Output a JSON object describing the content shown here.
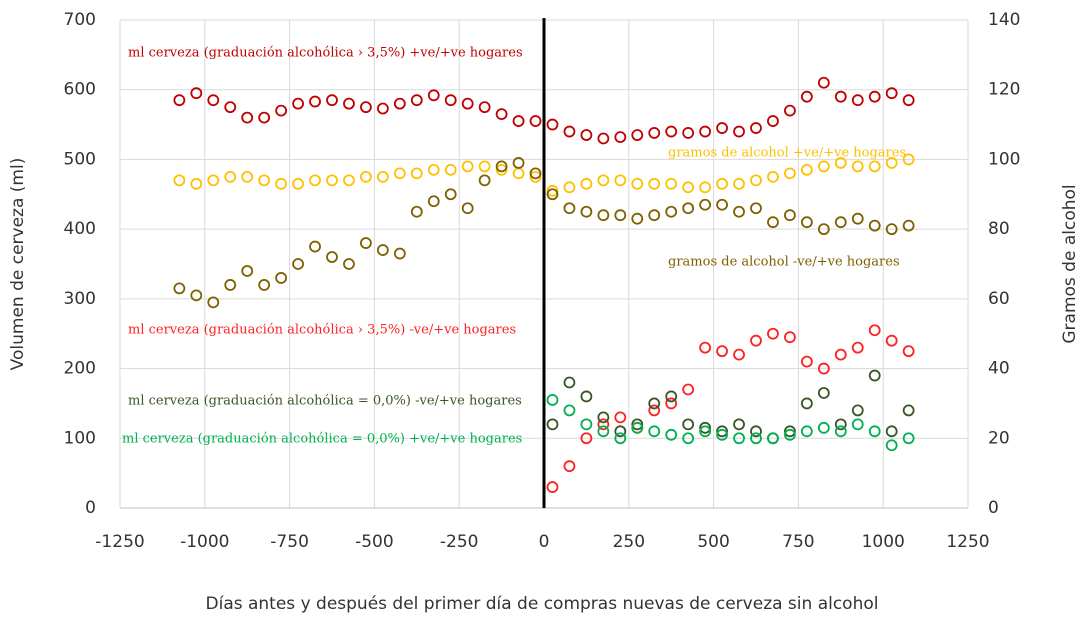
{
  "chart_data": {
    "type": "scatter",
    "x_label": "Días antes y después del primer día de compras nuevas de cerveza sin alcohol",
    "y_label": "Volumen de cerveza (ml)",
    "y2_label": "Gramos de alcohol",
    "xlim": [
      -1250,
      1250
    ],
    "xticks": [
      -1250,
      -1000,
      -750,
      -500,
      -250,
      0,
      250,
      500,
      750,
      1000,
      1250
    ],
    "ylim": [
      0,
      700
    ],
    "yticks": [
      0,
      100,
      200,
      300,
      400,
      500,
      600,
      700
    ],
    "y2lim": [
      0,
      140
    ],
    "y2ticks": [
      0,
      20,
      40,
      60,
      80,
      100,
      120,
      140
    ],
    "grid": true,
    "vline": 0,
    "series": [
      {
        "name": "ml cerveza (graduación alcohólica › 3,5%) +ve/+ve hogares",
        "color": "#c00000",
        "x": [
          -1075,
          -1025,
          -975,
          -925,
          -875,
          -825,
          -775,
          -725,
          -675,
          -625,
          -575,
          -525,
          -475,
          -425,
          -375,
          -325,
          -275,
          -225,
          -175,
          -125,
          -75,
          -25,
          25,
          75,
          125,
          175,
          225,
          275,
          325,
          375,
          425,
          475,
          525,
          575,
          625,
          675,
          725,
          775,
          825,
          875,
          925,
          975,
          1025,
          1075
        ],
        "values": [
          585,
          595,
          585,
          575,
          560,
          560,
          570,
          580,
          583,
          585,
          580,
          575,
          573,
          580,
          585,
          592,
          585,
          580,
          575,
          565,
          555,
          555,
          550,
          540,
          535,
          530,
          532,
          535,
          538,
          540,
          538,
          540,
          545,
          540,
          545,
          555,
          570,
          590,
          610,
          590,
          585,
          590,
          595,
          585
        ]
      },
      {
        "name": "gramos de alcohol +ve/+ve hogares",
        "color": "#ffc000",
        "axis": "y2",
        "x": [
          -1075,
          -1025,
          -975,
          -925,
          -875,
          -825,
          -775,
          -725,
          -675,
          -625,
          -575,
          -525,
          -475,
          -425,
          -375,
          -325,
          -275,
          -225,
          -175,
          -125,
          -75,
          -25,
          25,
          75,
          125,
          175,
          225,
          275,
          325,
          375,
          425,
          475,
          525,
          575,
          625,
          675,
          725,
          775,
          825,
          875,
          925,
          975,
          1025,
          1075
        ],
        "values": [
          94,
          93,
          94,
          95,
          95,
          94,
          93,
          93,
          94,
          94,
          94,
          95,
          95,
          96,
          96,
          97,
          97,
          98,
          98,
          97,
          96,
          95,
          91,
          92,
          93,
          94,
          94,
          93,
          93,
          93,
          92,
          92,
          93,
          93,
          94,
          95,
          96,
          97,
          98,
          99,
          98,
          98,
          99,
          100
        ]
      },
      {
        "name": "gramos de alcohol -ve/+ve hogares",
        "color": "#7f6000",
        "axis": "y2",
        "x": [
          -1075,
          -1025,
          -975,
          -925,
          -875,
          -825,
          -775,
          -725,
          -675,
          -625,
          -575,
          -525,
          -475,
          -425,
          -375,
          -325,
          -275,
          -225,
          -175,
          -125,
          -75,
          -25,
          25,
          75,
          125,
          175,
          225,
          275,
          325,
          375,
          425,
          475,
          525,
          575,
          625,
          675,
          725,
          775,
          825,
          875,
          925,
          975,
          1025,
          1075
        ],
        "values": [
          63,
          61,
          59,
          64,
          68,
          64,
          66,
          70,
          75,
          72,
          70,
          76,
          74,
          73,
          85,
          88,
          90,
          86,
          94,
          98,
          99,
          96,
          90,
          86,
          85,
          84,
          84,
          83,
          84,
          85,
          86,
          87,
          87,
          85,
          86,
          82,
          84,
          82,
          80,
          82,
          83,
          81,
          80,
          81
        ]
      },
      {
        "name": "ml cerveza (graduación alcohólica › 3,5%) -ve/+ve hogares",
        "color": "#ff2020",
        "x": [
          25,
          75,
          125,
          175,
          225,
          275,
          325,
          375,
          425,
          475,
          525,
          575,
          625,
          675,
          725,
          775,
          825,
          875,
          925,
          975,
          1025,
          1075
        ],
        "values": [
          30,
          60,
          100,
          120,
          130,
          115,
          140,
          150,
          170,
          230,
          225,
          220,
          240,
          250,
          245,
          210,
          200,
          220,
          230,
          255,
          240,
          225
        ]
      },
      {
        "name": "ml cerveza (graduación alcohólica = 0,0%) -ve/+ve hogares",
        "color": "#375623",
        "x": [
          25,
          75,
          125,
          175,
          225,
          275,
          325,
          375,
          425,
          475,
          525,
          575,
          625,
          675,
          725,
          775,
          825,
          875,
          925,
          975,
          1025,
          1075
        ],
        "values": [
          120,
          180,
          160,
          130,
          110,
          120,
          150,
          160,
          120,
          115,
          110,
          120,
          110,
          100,
          110,
          150,
          165,
          120,
          140,
          190,
          110,
          140
        ]
      },
      {
        "name": "ml cerveza (graduación alcohólica = 0,0%) +ve/+ve hogares",
        "color": "#00b050",
        "x": [
          25,
          75,
          125,
          175,
          225,
          275,
          325,
          375,
          425,
          475,
          525,
          575,
          625,
          675,
          725,
          775,
          825,
          875,
          925,
          975,
          1025,
          1075
        ],
        "values": [
          155,
          140,
          120,
          110,
          100,
          115,
          110,
          105,
          100,
          110,
          105,
          100,
          100,
          100,
          105,
          110,
          115,
          110,
          120,
          110,
          90,
          100
        ]
      }
    ]
  }
}
